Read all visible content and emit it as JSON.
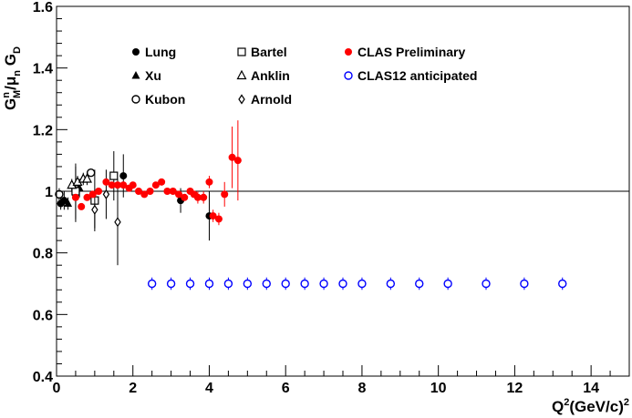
{
  "chart_data": {
    "type": "scatter",
    "title": "",
    "xlabel": "Q²(GeV/c)²",
    "ylabel": "Gᴹⁿ/μₙ G_D",
    "xlim": [
      0,
      15
    ],
    "ylim": [
      0.4,
      1.6
    ],
    "x_ticks": [
      0,
      2,
      4,
      6,
      8,
      10,
      12,
      14
    ],
    "y_ticks": [
      0.4,
      0.6,
      0.8,
      1,
      1.2,
      1.4,
      1.6
    ],
    "x_tick_labels": [
      "0",
      "2",
      "4",
      "6",
      "8",
      "10",
      "12",
      "14"
    ],
    "y_tick_labels": [
      "0.4",
      "0.6",
      "0.8",
      "1",
      "1.2",
      "1.4",
      "1.6"
    ],
    "grid": false,
    "legend_position": "top",
    "reference_line": {
      "y": 1.0
    },
    "colors": {
      "clas": "#ff0000",
      "clas12": "#0000ff",
      "world": "#000000"
    },
    "series": [
      {
        "name": "Lung",
        "marker": "circle-filled",
        "color": "#000000",
        "points": [
          {
            "x": 0.11,
            "y": 0.96,
            "err": 0.02
          },
          {
            "x": 0.2,
            "y": 0.97,
            "err": 0.03
          },
          {
            "x": 0.5,
            "y": 0.99,
            "err": 0.09
          },
          {
            "x": 1.75,
            "y": 1.05,
            "err": 0.07
          },
          {
            "x": 3.25,
            "y": 0.97,
            "err": 0.04
          },
          {
            "x": 4.0,
            "y": 0.92,
            "err": 0.08
          }
        ]
      },
      {
        "name": "Xu",
        "marker": "triangle-filled",
        "color": "#000000",
        "points": [
          {
            "x": 0.3,
            "y": 0.96,
            "err": 0.02
          },
          {
            "x": 0.5,
            "y": 1.0,
            "err": 0.02
          },
          {
            "x": 0.6,
            "y": 1.01,
            "err": 0.03
          }
        ]
      },
      {
        "name": "Kubon",
        "marker": "circle-open",
        "color": "#000000",
        "points": [
          {
            "x": 0.07,
            "y": 0.99,
            "err": 0.02
          },
          {
            "x": 0.9,
            "y": 1.06,
            "err": 0.01
          }
        ]
      },
      {
        "name": "Bartel",
        "marker": "square-open",
        "color": "#000000",
        "points": [
          {
            "x": 0.5,
            "y": 1.0,
            "err": 0.09
          },
          {
            "x": 1.0,
            "y": 0.97,
            "err": 0.1
          },
          {
            "x": 1.5,
            "y": 1.05,
            "err": 0.08
          }
        ]
      },
      {
        "name": "Anklin",
        "marker": "triangle-open",
        "color": "#000000",
        "points": [
          {
            "x": 0.4,
            "y": 1.02,
            "err": 0.02
          },
          {
            "x": 0.55,
            "y": 1.03,
            "err": 0.02
          },
          {
            "x": 0.7,
            "y": 1.04,
            "err": 0.02
          },
          {
            "x": 0.8,
            "y": 1.04,
            "err": 0.02
          }
        ]
      },
      {
        "name": "Arnold",
        "marker": "diamond-open",
        "color": "#000000",
        "points": [
          {
            "x": 1.0,
            "y": 0.94,
            "err": 0.06
          },
          {
            "x": 1.3,
            "y": 0.99,
            "err": 0.08
          },
          {
            "x": 1.6,
            "y": 0.9,
            "err": 0.14
          }
        ]
      },
      {
        "name": "CLAS Preliminary",
        "marker": "circle-filled",
        "color": "#ff0000",
        "points": [
          {
            "x": 0.5,
            "y": 0.98,
            "err": 0.01
          },
          {
            "x": 0.65,
            "y": 0.95,
            "err": 0.01
          },
          {
            "x": 0.8,
            "y": 0.98,
            "err": 0.01
          },
          {
            "x": 0.95,
            "y": 0.99,
            "err": 0.01
          },
          {
            "x": 1.1,
            "y": 1.0,
            "err": 0.01
          },
          {
            "x": 1.3,
            "y": 1.03,
            "err": 0.01
          },
          {
            "x": 1.45,
            "y": 1.02,
            "err": 0.01
          },
          {
            "x": 1.6,
            "y": 1.02,
            "err": 0.01
          },
          {
            "x": 1.75,
            "y": 1.02,
            "err": 0.01
          },
          {
            "x": 1.9,
            "y": 1.01,
            "err": 0.01
          },
          {
            "x": 2.0,
            "y": 1.02,
            "err": 0.01
          },
          {
            "x": 2.15,
            "y": 1.0,
            "err": 0.01
          },
          {
            "x": 2.3,
            "y": 0.99,
            "err": 0.01
          },
          {
            "x": 2.45,
            "y": 1.0,
            "err": 0.01
          },
          {
            "x": 2.6,
            "y": 1.02,
            "err": 0.01
          },
          {
            "x": 2.75,
            "y": 1.03,
            "err": 0.01
          },
          {
            "x": 2.9,
            "y": 1.0,
            "err": 0.01
          },
          {
            "x": 3.05,
            "y": 1.0,
            "err": 0.01
          },
          {
            "x": 3.2,
            "y": 0.99,
            "err": 0.01
          },
          {
            "x": 3.35,
            "y": 0.98,
            "err": 0.01
          },
          {
            "x": 3.5,
            "y": 1.0,
            "err": 0.01
          },
          {
            "x": 3.6,
            "y": 0.99,
            "err": 0.01
          },
          {
            "x": 3.7,
            "y": 0.98,
            "err": 0.02
          },
          {
            "x": 3.85,
            "y": 0.98,
            "err": 0.02
          },
          {
            "x": 4.0,
            "y": 1.03,
            "err": 0.02
          },
          {
            "x": 4.1,
            "y": 0.92,
            "err": 0.02
          },
          {
            "x": 4.25,
            "y": 0.91,
            "err": 0.02
          },
          {
            "x": 4.4,
            "y": 0.99,
            "err": 0.04
          },
          {
            "x": 4.6,
            "y": 1.11,
            "err": 0.1
          },
          {
            "x": 4.75,
            "y": 1.1,
            "err": 0.13
          }
        ]
      },
      {
        "name": "CLAS12 anticipated",
        "marker": "circle-open",
        "color": "#0000ff",
        "points": [
          {
            "x": 2.5,
            "y": 0.7,
            "err": 0.02
          },
          {
            "x": 3.0,
            "y": 0.7,
            "err": 0.02
          },
          {
            "x": 3.5,
            "y": 0.7,
            "err": 0.02
          },
          {
            "x": 4.0,
            "y": 0.7,
            "err": 0.02
          },
          {
            "x": 4.5,
            "y": 0.7,
            "err": 0.02
          },
          {
            "x": 5.0,
            "y": 0.7,
            "err": 0.02
          },
          {
            "x": 5.5,
            "y": 0.7,
            "err": 0.02
          },
          {
            "x": 6.0,
            "y": 0.7,
            "err": 0.02
          },
          {
            "x": 6.5,
            "y": 0.7,
            "err": 0.02
          },
          {
            "x": 7.0,
            "y": 0.7,
            "err": 0.02
          },
          {
            "x": 7.5,
            "y": 0.7,
            "err": 0.02
          },
          {
            "x": 8.0,
            "y": 0.7,
            "err": 0.02
          },
          {
            "x": 8.75,
            "y": 0.7,
            "err": 0.02
          },
          {
            "x": 9.5,
            "y": 0.7,
            "err": 0.02
          },
          {
            "x": 10.25,
            "y": 0.7,
            "err": 0.02
          },
          {
            "x": 11.25,
            "y": 0.7,
            "err": 0.02
          },
          {
            "x": 12.25,
            "y": 0.7,
            "err": 0.02
          },
          {
            "x": 13.25,
            "y": 0.7,
            "err": 0.02
          }
        ]
      }
    ]
  }
}
